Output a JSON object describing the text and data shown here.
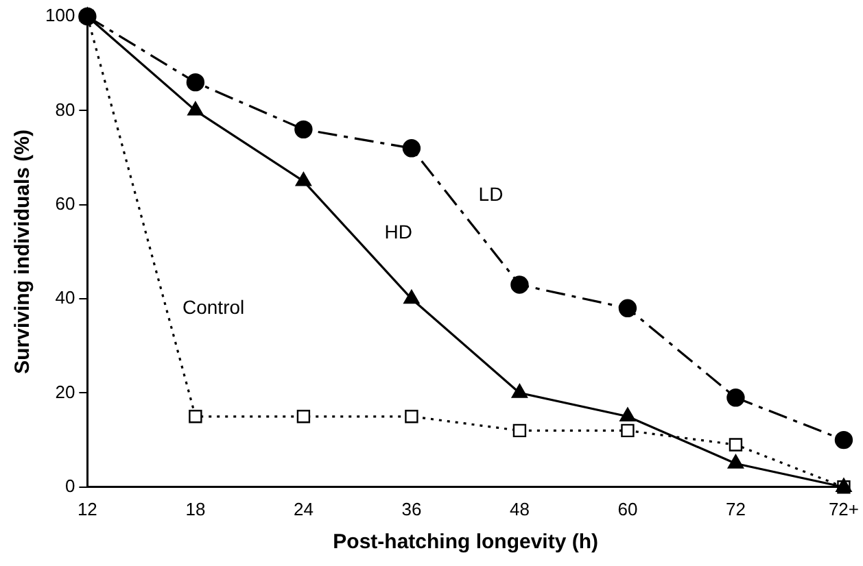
{
  "chart_data": {
    "type": "line",
    "xlabel": "Post-hatching longevity (h)",
    "ylabel": "Surviving individuals (%)",
    "categories": [
      "12",
      "18",
      "24",
      "36",
      "48",
      "60",
      "72",
      "72+"
    ],
    "ylim": [
      0,
      100
    ],
    "yticks": [
      0,
      20,
      40,
      60,
      80,
      100
    ],
    "grid": false,
    "legend": false,
    "series": [
      {
        "name": "LD",
        "color": "#000000",
        "marker": "circle",
        "line_style": "dashdot",
        "values": [
          100,
          86,
          76,
          72,
          43,
          38,
          19,
          10
        ]
      },
      {
        "name": "HD",
        "color": "#000000",
        "marker": "triangle",
        "line_style": "solid",
        "values": [
          100,
          80,
          65,
          40,
          20,
          15,
          5,
          0
        ]
      },
      {
        "name": "Control",
        "color": "#000000",
        "marker": "square",
        "line_style": "dotted",
        "values": [
          100,
          15,
          15,
          15,
          12,
          12,
          9,
          0
        ]
      }
    ]
  }
}
